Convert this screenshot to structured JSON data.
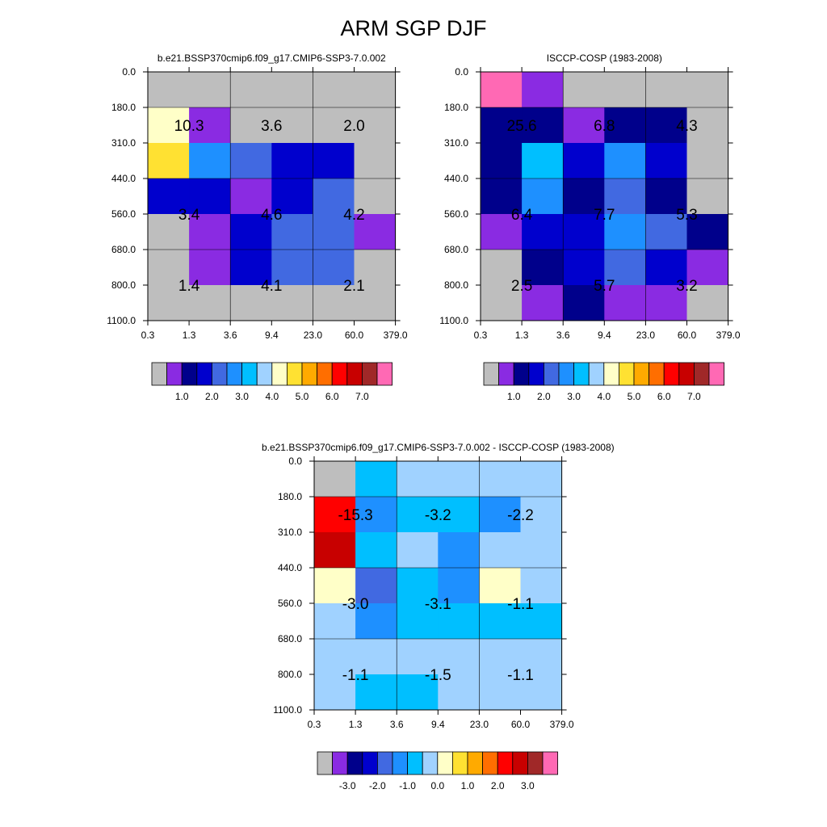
{
  "title": "ARM SGP DJF",
  "chart_data": [
    {
      "type": "heatmap",
      "title": "b.e21.BSSP370cmip6.f09_g17.CMIP6-SSP3-7.0.002",
      "xticks": [
        "0.3",
        "1.3",
        "3.6",
        "9.4",
        "23.0",
        "60.0",
        "379.0"
      ],
      "yticks": [
        "0.0",
        "180.0",
        "310.0",
        "440.0",
        "560.0",
        "680.0",
        "800.0",
        "1100.0"
      ],
      "cells": [
        [
          0,
          0,
          0,
          0,
          0,
          0
        ],
        [
          8,
          1,
          0,
          0,
          0,
          0
        ],
        [
          9,
          5,
          4,
          3,
          3,
          0
        ],
        [
          3,
          3,
          1,
          3,
          4,
          0
        ],
        [
          0,
          1,
          3,
          4,
          4,
          1
        ],
        [
          0,
          1,
          3,
          4,
          4,
          0
        ],
        [
          0,
          0,
          0,
          0,
          0,
          0
        ]
      ],
      "group_labels": [
        [
          "10.3",
          "3.6",
          "2.0"
        ],
        [
          "3.4",
          "4.6",
          "4.2"
        ],
        [
          "1.4",
          "4.1",
          "2.1"
        ]
      ],
      "colorbar": {
        "colors": [
          "#bebebe",
          "#8a2be2",
          "#00008b",
          "#0000cd",
          "#4169e1",
          "#1e90ff",
          "#00bfff",
          "#a0d2ff",
          "#ffffc8",
          "#ffe132",
          "#ffaa00",
          "#ff6e00",
          "#ff0000",
          "#c80000",
          "#a02828",
          "#ff69b4"
        ],
        "labels": [
          "1.0",
          "2.0",
          "3.0",
          "4.0",
          "5.0",
          "6.0",
          "7.0"
        ]
      }
    },
    {
      "type": "heatmap",
      "title": "ISCCP-COSP (1983-2008)",
      "xticks": [
        "0.3",
        "1.3",
        "3.6",
        "9.4",
        "23.0",
        "60.0",
        "379.0"
      ],
      "yticks": [
        "0.0",
        "180.0",
        "310.0",
        "440.0",
        "560.0",
        "680.0",
        "800.0",
        "1100.0"
      ],
      "cells": [
        [
          15,
          1,
          0,
          0,
          0,
          0
        ],
        [
          2,
          2,
          1,
          2,
          2,
          0
        ],
        [
          2,
          6,
          3,
          5,
          3,
          0
        ],
        [
          2,
          5,
          2,
          4,
          2,
          0
        ],
        [
          1,
          3,
          3,
          5,
          4,
          2
        ],
        [
          0,
          2,
          3,
          4,
          3,
          1
        ],
        [
          0,
          1,
          2,
          1,
          1,
          0
        ]
      ],
      "group_labels": [
        [
          "25.6",
          "6.8",
          "4.3"
        ],
        [
          "6.4",
          "7.7",
          "5.3"
        ],
        [
          "2.5",
          "5.7",
          "3.2"
        ]
      ],
      "colorbar": {
        "colors": [
          "#bebebe",
          "#8a2be2",
          "#00008b",
          "#0000cd",
          "#4169e1",
          "#1e90ff",
          "#00bfff",
          "#a0d2ff",
          "#ffffc8",
          "#ffe132",
          "#ffaa00",
          "#ff6e00",
          "#ff0000",
          "#c80000",
          "#a02828",
          "#ff69b4"
        ],
        "labels": [
          "1.0",
          "2.0",
          "3.0",
          "4.0",
          "5.0",
          "6.0",
          "7.0"
        ]
      }
    },
    {
      "type": "heatmap",
      "title": "b.e21.BSSP370cmip6.f09_g17.CMIP6-SSP3-7.0.002 - ISCCP-COSP (1983-2008)",
      "xticks": [
        "0.3",
        "1.3",
        "3.6",
        "9.4",
        "23.0",
        "60.0",
        "379.0"
      ],
      "yticks": [
        "0.0",
        "180.0",
        "310.0",
        "440.0",
        "560.0",
        "680.0",
        "800.0",
        "1100.0"
      ],
      "cells": [
        [
          0,
          6,
          7,
          7,
          7,
          7
        ],
        [
          12,
          5,
          6,
          6,
          5,
          7
        ],
        [
          13,
          6,
          7,
          5,
          7,
          7
        ],
        [
          8,
          4,
          6,
          5,
          8,
          7
        ],
        [
          7,
          5,
          6,
          6,
          6,
          6
        ],
        [
          7,
          7,
          7,
          7,
          7,
          7
        ],
        [
          7,
          6,
          6,
          7,
          7,
          7
        ]
      ],
      "group_labels": [
        [
          "-15.3",
          "-3.2",
          "-2.2"
        ],
        [
          "-3.0",
          "-3.1",
          "-1.1"
        ],
        [
          "-1.1",
          "-1.5",
          "-1.1"
        ]
      ],
      "colorbar": {
        "colors": [
          "#bebebe",
          "#8a2be2",
          "#00008b",
          "#0000cd",
          "#4169e1",
          "#1e90ff",
          "#00bfff",
          "#a0d2ff",
          "#ffffc8",
          "#ffe132",
          "#ffaa00",
          "#ff6e00",
          "#ff0000",
          "#c80000",
          "#a02828",
          "#ff69b4"
        ],
        "labels": [
          "-3.0",
          "-2.0",
          "-1.0",
          "0.0",
          "1.0",
          "2.0",
          "3.0"
        ]
      }
    }
  ]
}
